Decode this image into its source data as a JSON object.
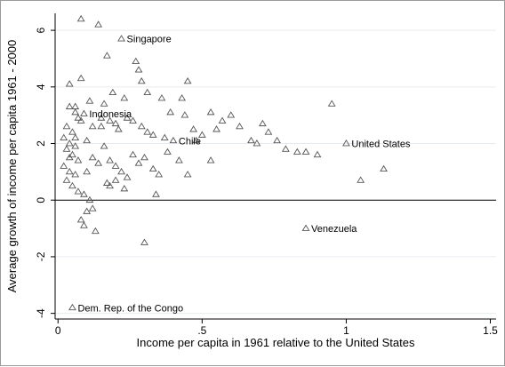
{
  "chart_data": {
    "type": "scatter",
    "title": "",
    "xlabel": "Income per capita in 1961 relative to the United States",
    "ylabel": "Average growth of income per capita 1961 - 2000",
    "xlim": [
      -0.01,
      1.52
    ],
    "ylim": [
      -4.2,
      6.6
    ],
    "xticks": [
      0,
      0.5,
      1,
      1.5
    ],
    "xtick_labels": [
      "0",
      ".5",
      "1",
      "1.5"
    ],
    "yticks": [
      -4,
      -2,
      0,
      2,
      4,
      6
    ],
    "ytick_labels": [
      "-4",
      "-2",
      "0",
      "2",
      "4",
      "6"
    ],
    "grid": "horizontal",
    "reference_line_y": 0,
    "marker": "hollow-triangle",
    "marker_color": "#555555",
    "points": [
      [
        0.08,
        6.4
      ],
      [
        0.14,
        6.2
      ],
      [
        0.22,
        5.7
      ],
      [
        0.27,
        4.9
      ],
      [
        0.28,
        4.6
      ],
      [
        0.17,
        5.1
      ],
      [
        0.04,
        4.1
      ],
      [
        0.08,
        4.3
      ],
      [
        0.45,
        4.2
      ],
      [
        0.29,
        4.2
      ],
      [
        0.31,
        3.8
      ],
      [
        0.19,
        3.8
      ],
      [
        0.23,
        3.6
      ],
      [
        0.36,
        3.6
      ],
      [
        0.43,
        3.6
      ],
      [
        0.16,
        3.4
      ],
      [
        0.11,
        3.5
      ],
      [
        0.06,
        3.3
      ],
      [
        0.04,
        3.3
      ],
      [
        0.09,
        3.05
      ],
      [
        0.06,
        3.1
      ],
      [
        0.08,
        2.8
      ],
      [
        0.07,
        2.9
      ],
      [
        0.12,
        2.6
      ],
      [
        0.15,
        2.9
      ],
      [
        0.18,
        2.8
      ],
      [
        0.2,
        2.7
      ],
      [
        0.21,
        2.5
      ],
      [
        0.24,
        2.9
      ],
      [
        0.26,
        2.8
      ],
      [
        0.29,
        2.6
      ],
      [
        0.31,
        2.4
      ],
      [
        0.33,
        2.3
      ],
      [
        0.37,
        2.2
      ],
      [
        0.39,
        3.1
      ],
      [
        0.44,
        3.0
      ],
      [
        0.47,
        2.5
      ],
      [
        0.5,
        2.3
      ],
      [
        0.53,
        3.1
      ],
      [
        0.55,
        2.5
      ],
      [
        0.57,
        2.8
      ],
      [
        0.6,
        3.0
      ],
      [
        0.63,
        2.6
      ],
      [
        0.67,
        2.1
      ],
      [
        0.69,
        2.0
      ],
      [
        0.71,
        2.7
      ],
      [
        0.73,
        2.4
      ],
      [
        0.76,
        2.1
      ],
      [
        0.79,
        1.8
      ],
      [
        0.83,
        1.7
      ],
      [
        0.86,
        1.7
      ],
      [
        0.9,
        1.6
      ],
      [
        0.95,
        3.4
      ],
      [
        1.0,
        2.0
      ],
      [
        1.05,
        0.7
      ],
      [
        1.13,
        1.1
      ],
      [
        0.03,
        2.6
      ],
      [
        0.05,
        2.4
      ],
      [
        0.06,
        2.2
      ],
      [
        0.04,
        2.0
      ],
      [
        0.03,
        1.8
      ],
      [
        0.05,
        1.6
      ],
      [
        0.07,
        1.4
      ],
      [
        0.02,
        1.2
      ],
      [
        0.04,
        1.0
      ],
      [
        0.06,
        0.9
      ],
      [
        0.03,
        0.7
      ],
      [
        0.05,
        0.5
      ],
      [
        0.07,
        0.3
      ],
      [
        0.02,
        2.2
      ],
      [
        0.06,
        1.9
      ],
      [
        0.04,
        1.5
      ],
      [
        0.1,
        2.1
      ],
      [
        0.12,
        1.5
      ],
      [
        0.14,
        1.3
      ],
      [
        0.16,
        1.9
      ],
      [
        0.18,
        1.4
      ],
      [
        0.2,
        1.2
      ],
      [
        0.22,
        1.0
      ],
      [
        0.24,
        0.8
      ],
      [
        0.26,
        1.6
      ],
      [
        0.28,
        1.3
      ],
      [
        0.3,
        1.5
      ],
      [
        0.33,
        1.1
      ],
      [
        0.35,
        0.9
      ],
      [
        0.38,
        1.7
      ],
      [
        0.42,
        1.4
      ],
      [
        0.45,
        0.9
      ],
      [
        0.48,
        2.1
      ],
      [
        0.53,
        1.4
      ],
      [
        0.09,
        0.2
      ],
      [
        0.1,
        -0.4
      ],
      [
        0.08,
        -0.7
      ],
      [
        0.11,
        0.0
      ],
      [
        0.13,
        -1.1
      ],
      [
        0.12,
        -0.3
      ],
      [
        0.09,
        -0.9
      ],
      [
        0.18,
        0.5
      ],
      [
        0.2,
        0.7
      ],
      [
        0.23,
        0.4
      ],
      [
        0.34,
        0.2
      ],
      [
        0.3,
        -1.5
      ],
      [
        0.86,
        -1.0
      ],
      [
        0.05,
        -3.8
      ],
      [
        0.4,
        2.1
      ],
      [
        0.15,
        2.6
      ],
      [
        0.1,
        1.0
      ],
      [
        0.17,
        0.6
      ]
    ],
    "annotations": [
      {
        "label": "Singapore",
        "x": 0.22,
        "y": 5.7
      },
      {
        "label": "Indonesia",
        "x": 0.09,
        "y": 3.05
      },
      {
        "label": "Chile",
        "x": 0.4,
        "y": 2.1
      },
      {
        "label": "United States",
        "x": 1.0,
        "y": 2.0
      },
      {
        "label": "Venezuela",
        "x": 0.86,
        "y": -1.0
      },
      {
        "label": "Dem. Rep. of the Congo",
        "x": 0.05,
        "y": -3.8
      }
    ]
  }
}
